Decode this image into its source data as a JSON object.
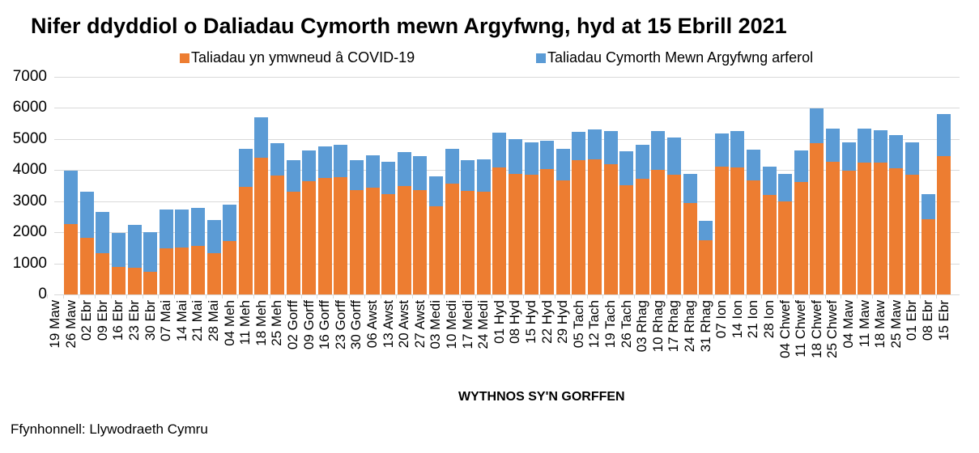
{
  "title": "Nifer ddyddiol o Daliadau Cymorth mewn Argyfwng, hyd at 15 Ebrill 2021",
  "source": "Ffynhonnell: Llywodraeth Cymru",
  "colors": {
    "covid": "#ED7D31",
    "regular": "#5B9BD5",
    "grid": "#D9D9D9"
  },
  "legend": [
    {
      "label": "Taliadau yn ymwneud â COVID-19",
      "color": "#ED7D31"
    },
    {
      "label": "Taliadau Cymorth Mewn Argyfwng arferol",
      "color": "#5B9BD5"
    }
  ],
  "chart_data": {
    "type": "bar",
    "stacked": true,
    "title": "Nifer ddyddiol o Daliadau Cymorth mewn Argyfwng, hyd at 15 Ebrill 2021",
    "xlabel": "WYTHNOS SY'N GORFFEN",
    "ylabel": "",
    "ylim": [
      0,
      7000
    ],
    "yticks": [
      0,
      1000,
      2000,
      3000,
      4000,
      5000,
      6000,
      7000
    ],
    "grid": true,
    "legend_position": "top",
    "categories": [
      "19 Maw",
      "26 Maw",
      "02 Ebr",
      "09 Ebr",
      "16 Ebr",
      "23 Ebr",
      "30 Ebr",
      "07 Mai",
      "14 Mai",
      "21 Mai",
      "28 Mai",
      "04 Meh",
      "11 Meh",
      "18 Meh",
      "25 Meh",
      "02 Gorff",
      "09 Gorff",
      "16 Gorff",
      "23 Gorff",
      "30 Gorff",
      "06 Awst",
      "13 Awst",
      "20 Awst",
      "27 Awst",
      "03 Medi",
      "10 Medi",
      "17 Medi",
      "24 Medi",
      "01 Hyd",
      "08 Hyd",
      "15 Hyd",
      "22 Hyd",
      "29 Hyd",
      "05 Tach",
      "12 Tach",
      "19 Tach",
      "26 Tach",
      "03 Rhag",
      "10 Rhag",
      "17 Rhag",
      "24 Rhag",
      "31 Rhag",
      "07 Ion",
      "14 Ion",
      "21 Ion",
      "28 Ion",
      "04 Chwef",
      "11 Chwef",
      "18 Chwef",
      "25 Chwef",
      "04 Maw",
      "11 Maw",
      "18 Maw",
      "25 Maw",
      "01 Ebr",
      "08 Ebr",
      "15 Ebr"
    ],
    "series": [
      {
        "name": "Taliadau yn ymwneud â COVID-19",
        "color": "#ED7D31",
        "values": [
          0,
          2260,
          1820,
          1325,
          880,
          855,
          730,
          1480,
          1505,
          1560,
          1325,
          1715,
          3460,
          4400,
          3825,
          3305,
          3645,
          3745,
          3775,
          3355,
          3435,
          3225,
          3490,
          3355,
          2835,
          3565,
          3330,
          3305,
          4085,
          3875,
          3850,
          4035,
          3670,
          4320,
          4345,
          4190,
          3510,
          3720,
          4010,
          3850,
          2940,
          1745,
          4110,
          4085,
          3670,
          3200,
          2990,
          3615,
          4865,
          4265,
          3980,
          4240,
          4240,
          4060,
          3850,
          2420,
          4450
        ]
      },
      {
        "name": "Taliadau Cymorth Mewn Argyfwng arferol",
        "color": "#5B9BD5",
        "values": [
          0,
          1730,
          1480,
          1325,
          1095,
          1380,
          1270,
          1245,
          1220,
          1220,
          1065,
          1165,
          1225,
          1300,
          1040,
          1015,
          985,
          1015,
          1040,
          965,
          1040,
          1040,
          1090,
          1095,
          965,
          1120,
          990,
          1040,
          1120,
          1125,
          1040,
          910,
          1015,
          910,
          965,
          1065,
          1095,
          1095,
          1245,
          1200,
          935,
          625,
          1070,
          1170,
          990,
          910,
          885,
          1015,
          1120,
          1070,
          910,
          1095,
          1040,
          1065,
          1040,
          805,
          1350
        ]
      }
    ],
    "totals": [
      0,
      3990,
      3300,
      2650,
      1975,
      2235,
      2000,
      2725,
      2725,
      2780,
      2390,
      2880,
      4685,
      5700,
      4865,
      4320,
      4630,
      4760,
      4815,
      4320,
      4475,
      4265,
      4580,
      4450,
      3800,
      4685,
      4320,
      4345,
      5205,
      5000,
      4890,
      4945,
      4685,
      5230,
      5310,
      5255,
      4605,
      4815,
      5255,
      5050,
      3875,
      2370,
      5180,
      5255,
      4660,
      4110,
      3875,
      4630,
      5985,
      5335,
      4890,
      5335,
      5280,
      5125,
      4890,
      3225,
      5800
    ]
  }
}
